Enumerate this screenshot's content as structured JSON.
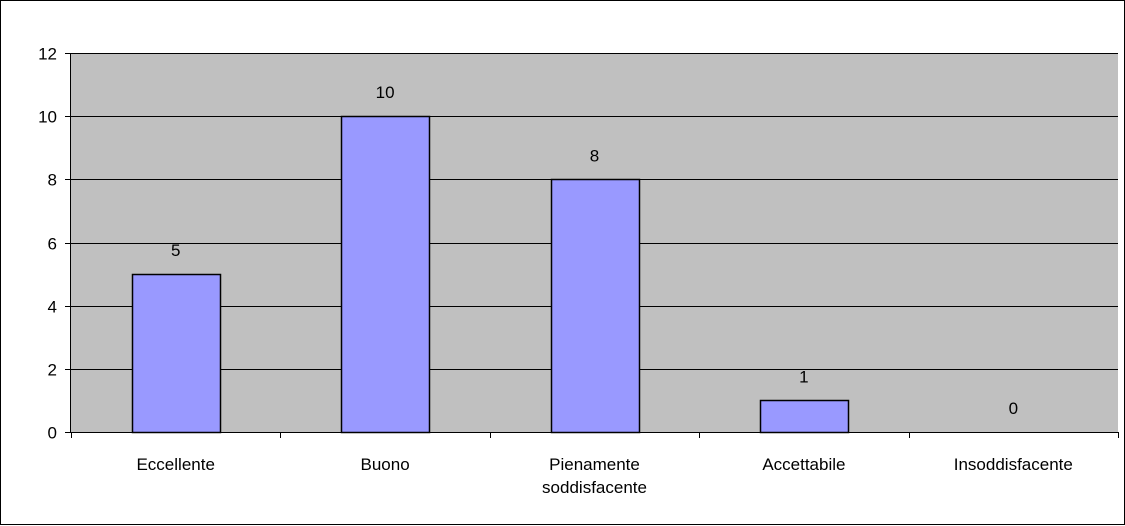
{
  "chart_data": {
    "type": "bar",
    "title": "",
    "xlabel": "",
    "ylabel": "",
    "categories": [
      [
        "Eccellente"
      ],
      [
        "Buono"
      ],
      [
        "Pienamente",
        "soddisfacente"
      ],
      [
        "Accettabile"
      ],
      [
        "Insoddisfacente"
      ]
    ],
    "values": [
      5,
      10,
      8,
      1,
      0
    ],
    "data_labels": [
      "5",
      "10",
      "8",
      "1",
      "0"
    ],
    "ylim": [
      0,
      12
    ],
    "yticks": [
      0,
      2,
      4,
      6,
      8,
      10,
      12
    ],
    "grid": true,
    "legend": "none",
    "colors": {
      "plot_background": "#c0c0c0",
      "bar_fill": "#9999ff",
      "bar_stroke": "#000000",
      "gridline": "#000000",
      "axis": "#000000"
    }
  }
}
